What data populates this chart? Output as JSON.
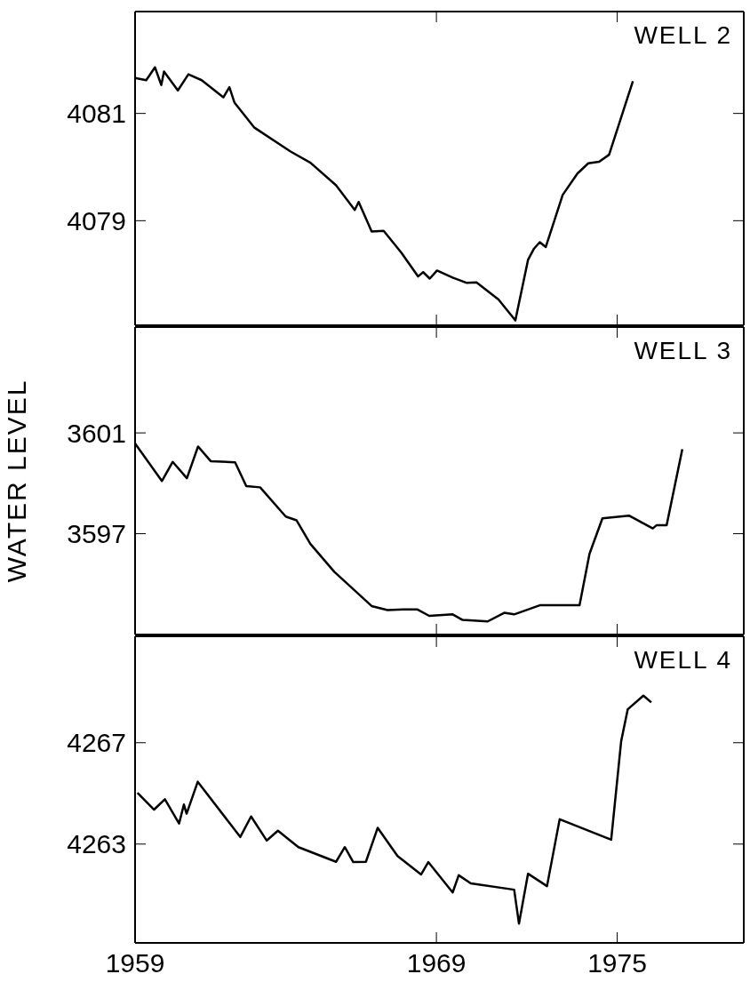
{
  "chart_data": [
    {
      "type": "line",
      "title": "WELL 2",
      "color": "#000000",
      "tick_labels": "y",
      "xlim": [
        1959,
        1979.2
      ],
      "xticks": [
        1959,
        1969,
        1975
      ],
      "ylim": [
        4077.05,
        4082.9
      ],
      "yticks": [
        4079,
        4081
      ],
      "x": [
        1959.0,
        1959.37,
        1959.66,
        1959.87,
        1959.96,
        1960.42,
        1960.77,
        1961.21,
        1961.93,
        1962.13,
        1962.3,
        1962.95,
        1964.16,
        1964.82,
        1965.67,
        1966.29,
        1966.42,
        1966.85,
        1967.25,
        1967.84,
        1968.39,
        1968.56,
        1968.78,
        1969.02,
        1969.54,
        1970.01,
        1970.33,
        1971.06,
        1971.62,
        1972.04,
        1972.24,
        1972.43,
        1972.63,
        1973.19,
        1973.68,
        1974.04,
        1974.4,
        1974.73,
        1975.52
      ],
      "values": [
        4081.66,
        4081.62,
        4081.86,
        4081.53,
        4081.78,
        4081.43,
        4081.73,
        4081.62,
        4081.3,
        4081.49,
        4081.2,
        4080.74,
        4080.29,
        4080.08,
        4079.66,
        4079.2,
        4079.35,
        4078.8,
        4078.81,
        4078.4,
        4077.96,
        4078.04,
        4077.92,
        4078.07,
        4077.94,
        4077.84,
        4077.85,
        4077.53,
        4077.14,
        4078.27,
        4078.48,
        4078.6,
        4078.51,
        4079.48,
        4079.88,
        4080.07,
        4080.1,
        4080.23,
        4081.6
      ]
    },
    {
      "type": "line",
      "title": "WELL 3",
      "ylabel": "WATER LEVEL",
      "color": "#000000",
      "tick_labels": "y",
      "xlim": [
        1959,
        1979.2
      ],
      "xticks": [
        1959,
        1969,
        1975
      ],
      "ylim": [
        3593,
        3605.2
      ],
      "yticks": [
        3597,
        3601
      ],
      "x": [
        1959.0,
        1959.89,
        1960.25,
        1960.72,
        1961.09,
        1961.51,
        1962.32,
        1962.69,
        1963.15,
        1964.0,
        1964.36,
        1964.82,
        1965.61,
        1966.85,
        1967.38,
        1967.9,
        1968.36,
        1968.76,
        1969.54,
        1969.87,
        1970.7,
        1971.25,
        1971.58,
        1972.43,
        1973.75,
        1974.08,
        1974.51,
        1975.39,
        1976.18,
        1976.31,
        1976.64,
        1977.16
      ],
      "values": [
        3600.58,
        3599.09,
        3599.85,
        3599.2,
        3600.46,
        3599.88,
        3599.83,
        3598.89,
        3598.84,
        3597.68,
        3597.53,
        3596.59,
        3595.49,
        3594.13,
        3593.97,
        3594.0,
        3594.0,
        3593.74,
        3593.8,
        3593.58,
        3593.52,
        3593.86,
        3593.8,
        3594.16,
        3594.16,
        3596.2,
        3597.61,
        3597.72,
        3597.21,
        3597.34,
        3597.34,
        3600.35
      ]
    },
    {
      "type": "line",
      "title": "WELL 4",
      "color": "#000000",
      "xlim": [
        1959,
        1979.2
      ],
      "xticks": [
        1959,
        1969,
        1975
      ],
      "ylim": [
        4259.1,
        4271.2
      ],
      "yticks": [
        4263,
        4267
      ],
      "x": [
        1959.08,
        1959.63,
        1959.99,
        1960.46,
        1960.62,
        1960.71,
        1961.08,
        1962.49,
        1962.85,
        1963.37,
        1963.74,
        1964.42,
        1965.67,
        1965.96,
        1966.24,
        1966.66,
        1967.05,
        1967.71,
        1968.49,
        1968.73,
        1969.54,
        1969.74,
        1970.14,
        1971.58,
        1971.74,
        1972.04,
        1972.67,
        1973.09,
        1974.8,
        1975.13,
        1975.35,
        1975.87,
        1976.13
      ],
      "values": [
        4265.02,
        4264.36,
        4264.77,
        4263.81,
        4264.56,
        4264.2,
        4265.46,
        4263.28,
        4264.09,
        4263.14,
        4263.53,
        4262.88,
        4262.3,
        4262.88,
        4262.29,
        4262.3,
        4263.64,
        4262.53,
        4261.8,
        4262.29,
        4261.09,
        4261.77,
        4261.45,
        4261.2,
        4259.86,
        4261.83,
        4261.34,
        4263.98,
        4263.17,
        4267.05,
        4268.32,
        4268.86,
        4268.59
      ]
    }
  ]
}
